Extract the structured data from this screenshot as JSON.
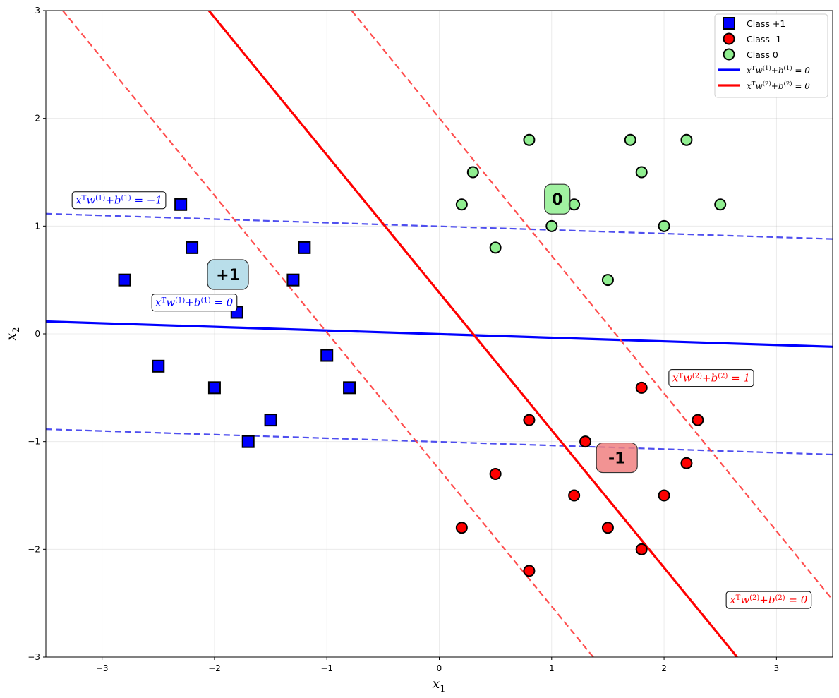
{
  "chart_data": {
    "type": "scatter",
    "xlabel": "x1",
    "ylabel": "x2",
    "xlim": [
      -3.5,
      3.5
    ],
    "ylim": [
      -3,
      3
    ],
    "grid": true,
    "xticks": [
      -3,
      -2,
      -1,
      0,
      1,
      2,
      3
    ],
    "yticks": [
      -3,
      -2,
      -1,
      0,
      1,
      2,
      3
    ],
    "xtick_labels": [
      "−3",
      "−2",
      "−1",
      "0",
      "1",
      "2",
      "3"
    ],
    "ytick_labels": [
      "−3",
      "−2",
      "−1",
      "0",
      "1",
      "2",
      "3"
    ],
    "legend_position": "top-right",
    "series": [
      {
        "name": "Class +1",
        "marker": "square",
        "color": "#0000ff",
        "points": [
          [
            -2.8,
            0.5
          ],
          [
            -2.3,
            1.2
          ],
          [
            -2.2,
            0.8
          ],
          [
            -1.8,
            0.2
          ],
          [
            -1.3,
            0.5
          ],
          [
            -1.2,
            0.8
          ],
          [
            -2.5,
            -0.3
          ],
          [
            -2.0,
            -0.5
          ],
          [
            -1.5,
            -0.8
          ],
          [
            -1.7,
            -1.0
          ],
          [
            -1.0,
            -0.2
          ],
          [
            -0.8,
            -0.5
          ]
        ]
      },
      {
        "name": "Class -1",
        "marker": "circle",
        "color": "#ff0000",
        "points": [
          [
            1.8,
            -0.5
          ],
          [
            2.3,
            -0.8
          ],
          [
            0.8,
            -0.8
          ],
          [
            1.3,
            -1.0
          ],
          [
            2.2,
            -1.2
          ],
          [
            0.5,
            -1.3
          ],
          [
            1.2,
            -1.5
          ],
          [
            2.0,
            -1.5
          ],
          [
            0.2,
            -1.8
          ],
          [
            1.5,
            -1.8
          ],
          [
            1.8,
            -2.0
          ],
          [
            0.8,
            -2.2
          ]
        ]
      },
      {
        "name": "Class 0",
        "marker": "circle",
        "color": "#90ee90",
        "points": [
          [
            0.8,
            1.8
          ],
          [
            1.7,
            1.8
          ],
          [
            2.2,
            1.8
          ],
          [
            0.3,
            1.5
          ],
          [
            1.8,
            1.5
          ],
          [
            0.2,
            1.2
          ],
          [
            1.2,
            1.2
          ],
          [
            2.5,
            1.2
          ],
          [
            1.0,
            1.0
          ],
          [
            2.0,
            1.0
          ],
          [
            0.5,
            0.8
          ],
          [
            1.5,
            0.5
          ]
        ]
      }
    ],
    "lines": [
      {
        "name": "x^T w^(1) + b^(1) = 0",
        "color": "#0000ff",
        "style": "solid",
        "p1": [
          -3.5,
          0.115
        ],
        "p2": [
          3.5,
          -0.12
        ]
      },
      {
        "name": "",
        "color": "#4444ee",
        "style": "dashed",
        "p1": [
          -3.5,
          1.115
        ],
        "p2": [
          3.5,
          0.88
        ]
      },
      {
        "name": "",
        "color": "#4444ee",
        "style": "dashed",
        "p1": [
          -3.5,
          -0.885
        ],
        "p2": [
          3.5,
          -1.12
        ]
      },
      {
        "name": "x^T w^(2) + b^(2) = 0",
        "color": "#ff0000",
        "style": "solid",
        "p1": [
          -2.05,
          3.0
        ],
        "p2": [
          2.65,
          -3.0
        ]
      },
      {
        "name": "",
        "color": "#ff4444",
        "style": "dashed",
        "p1": [
          -3.35,
          3.0
        ],
        "p2": [
          1.37,
          -3.0
        ]
      },
      {
        "name": "",
        "color": "#ff4444",
        "style": "dashed",
        "p1": [
          -0.78,
          3.0
        ],
        "p2": [
          3.5,
          -2.47
        ]
      }
    ],
    "legend": {
      "entries": [
        {
          "label": "Class +1",
          "kind": "square",
          "color": "#0000ff"
        },
        {
          "label": "Class -1",
          "kind": "circle",
          "color": "#ff0000"
        },
        {
          "label": "Class 0",
          "kind": "circle",
          "color": "#90ee90"
        },
        {
          "label": "x^T w^(1) + b^(1) = 0",
          "kind": "line",
          "color": "#0000ff"
        },
        {
          "label": "x^T w^(2) + b^(2) = 0",
          "kind": "line",
          "color": "#ff0000"
        }
      ]
    },
    "annotations": [
      {
        "label": "x^T w^(1) + b^(1) = −1",
        "color": "#0000ff",
        "x": -2.85,
        "y": 1.24
      },
      {
        "label": "x^T w^(1) + b^(1) = 0",
        "color": "#0000ff",
        "x": -2.18,
        "y": 0.29
      },
      {
        "label": "x^T w^(2) + b^(2) = 1",
        "color": "#ff0000",
        "x": 2.42,
        "y": -0.41
      },
      {
        "label": "x^T w^(2) + b^(2) = 0",
        "color": "#ff0000",
        "x": 2.93,
        "y": -2.47
      }
    ],
    "region_labels": [
      {
        "label": "+1",
        "x": -1.88,
        "y": 0.55,
        "color": "#add8e6"
      },
      {
        "label": "0",
        "x": 1.05,
        "y": 1.25,
        "color": "#90ee90"
      },
      {
        "label": "-1",
        "x": 1.58,
        "y": -1.15,
        "color": "#f08080"
      }
    ]
  }
}
